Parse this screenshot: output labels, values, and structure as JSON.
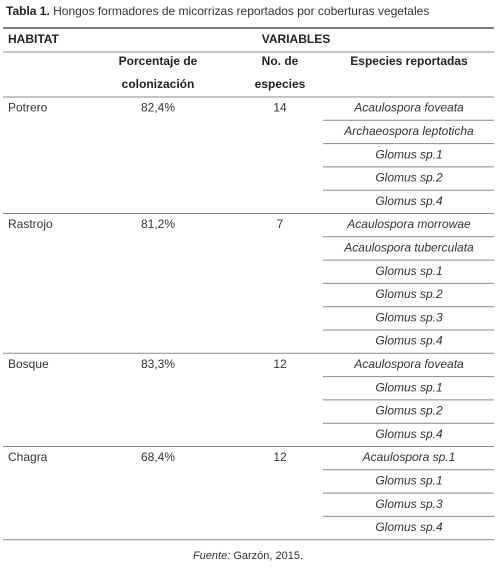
{
  "caption": {
    "label": "Tabla 1.",
    "text": "Hongos formadores de micorrizas reportados por coberturas vegetales"
  },
  "table": {
    "header": {
      "habitat": "HABITAT",
      "variables": "VARIABLES",
      "columns": [
        [
          "Porcentaje de",
          "colonización"
        ],
        [
          "No. de",
          "especies"
        ],
        [
          "Especies reportadas"
        ]
      ]
    },
    "rows": [
      {
        "habitat": "Potrero",
        "colonization": "82,4%",
        "species_count": 14,
        "species": [
          "Acaulospora foveata",
          "Archaeospora leptoticha",
          "Glomus sp.1",
          "Glomus sp.2",
          "Glomus sp.4"
        ]
      },
      {
        "habitat": "Rastrojo",
        "colonization": "81,2%",
        "species_count": 7,
        "species": [
          "Acaulospora morrowae",
          "Acaulospora tuberculata",
          "Glomus sp.1",
          "Glomus sp.2",
          "Glomus sp.3",
          "Glomus sp.4"
        ]
      },
      {
        "habitat": "Bosque",
        "colonization": "83,3%",
        "species_count": 12,
        "species": [
          "Acaulospora foveata",
          "Glomus sp.1",
          "Glomus sp.2",
          "Glomus sp.4"
        ]
      },
      {
        "habitat": "Chagra",
        "colonization": "68,4%",
        "species_count": 12,
        "species": [
          "Acaulospora sp.1",
          "Glomus sp.1",
          "Glomus sp.3",
          "Glomus sp.4"
        ]
      }
    ]
  },
  "source": {
    "label": "Fuente:",
    "text": "Garzón, 2015."
  }
}
